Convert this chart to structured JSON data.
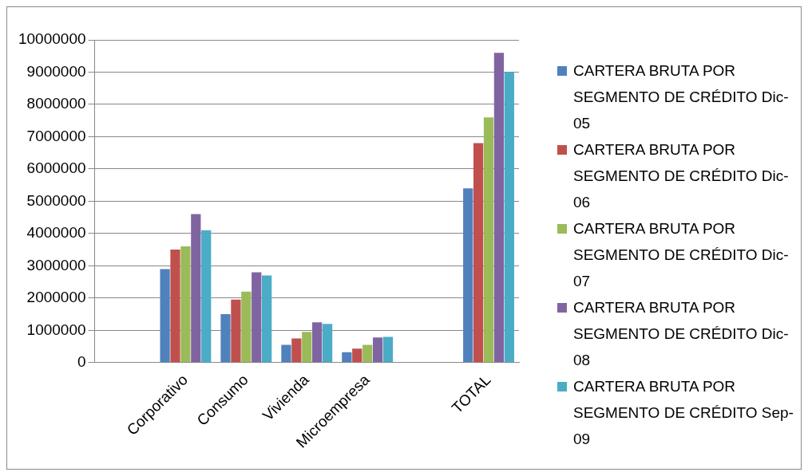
{
  "chart_data": {
    "type": "bar",
    "categories": [
      null,
      "Corporativo",
      "Consumo",
      "Vivienda",
      "Microempresa",
      null,
      "TOTAL"
    ],
    "series": [
      {
        "name": "CARTERA BRUTA POR SEGMENTO DE CRÉDITO Dic-05",
        "color": "#4f81bd",
        "values": [
          null,
          2900000,
          1500000,
          550000,
          320000,
          null,
          5400000
        ]
      },
      {
        "name": "CARTERA BRUTA POR SEGMENTO DE CRÉDITO Dic-06",
        "color": "#c0504d",
        "values": [
          null,
          3500000,
          1950000,
          750000,
          430000,
          null,
          6800000
        ]
      },
      {
        "name": "CARTERA BRUTA POR SEGMENTO DE CRÉDITO Dic-07",
        "color": "#9bbb59",
        "values": [
          null,
          3600000,
          2200000,
          950000,
          550000,
          null,
          7600000
        ]
      },
      {
        "name": "CARTERA BRUTA POR SEGMENTO DE CRÉDITO Dic-08",
        "color": "#8064a2",
        "values": [
          null,
          4600000,
          2800000,
          1250000,
          780000,
          null,
          9600000
        ]
      },
      {
        "name": "CARTERA BRUTA POR SEGMENTO DE CRÉDITO Sep-09",
        "color": "#4bacc6",
        "values": [
          null,
          4100000,
          2700000,
          1200000,
          800000,
          null,
          9000000
        ]
      }
    ],
    "ylim": [
      0,
      10000000
    ],
    "yticks": [
      0,
      1000000,
      2000000,
      3000000,
      4000000,
      5000000,
      6000000,
      7000000,
      8000000,
      9000000,
      10000000
    ],
    "grid": "y",
    "legend": "right"
  }
}
